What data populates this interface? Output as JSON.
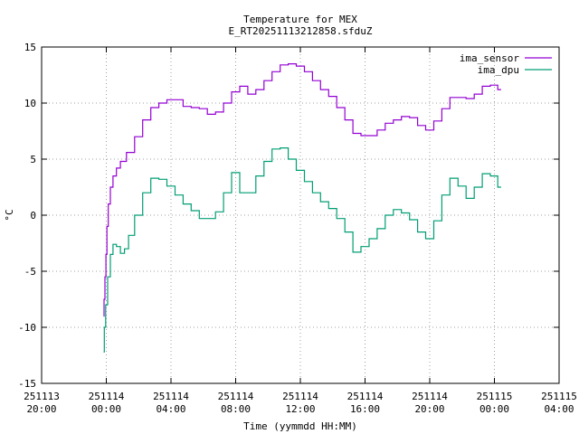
{
  "chart_data": {
    "type": "line",
    "title": "Temperature for MEX",
    "subtitle": "E_RT20251113212858.sfduZ",
    "xlabel": "Time (yymmdd HH:MM)",
    "ylabel": "°C",
    "x_ticks": [
      {
        "date": "251113",
        "time": "20:00"
      },
      {
        "date": "251114",
        "time": "00:00"
      },
      {
        "date": "251114",
        "time": "04:00"
      },
      {
        "date": "251114",
        "time": "08:00"
      },
      {
        "date": "251114",
        "time": "12:00"
      },
      {
        "date": "251114",
        "time": "16:00"
      },
      {
        "date": "251114",
        "time": "20:00"
      },
      {
        "date": "251115",
        "time": "00:00"
      },
      {
        "date": "251115",
        "time": "04:00"
      }
    ],
    "xlim": [
      "2025-11-13 20:00",
      "2025-11-15 04:00"
    ],
    "ylim": [
      -15,
      15
    ],
    "y_ticks": [
      -15,
      -10,
      -5,
      0,
      5,
      10,
      15
    ],
    "grid": true,
    "legend_position": "top-right",
    "colors": {
      "ima_sensor": "#9400d3",
      "ima_dpu": "#009e73"
    },
    "series": [
      {
        "name": "ima_sensor",
        "points": [
          [
            "2025-11-13 23:50",
            -9.0
          ],
          [
            "2025-11-13 23:53",
            -7.5
          ],
          [
            "2025-11-13 23:57",
            -5.5
          ],
          [
            "2025-11-14 00:00",
            -3.5
          ],
          [
            "2025-11-14 00:05",
            -1.0
          ],
          [
            "2025-11-14 00:10",
            1.0
          ],
          [
            "2025-11-14 00:20",
            2.5
          ],
          [
            "2025-11-14 00:30",
            3.5
          ],
          [
            "2025-11-14 00:45",
            4.2
          ],
          [
            "2025-11-14 01:00",
            4.8
          ],
          [
            "2025-11-14 01:30",
            5.6
          ],
          [
            "2025-11-14 02:00",
            7.0
          ],
          [
            "2025-11-14 02:30",
            8.5
          ],
          [
            "2025-11-14 03:00",
            9.6
          ],
          [
            "2025-11-14 03:30",
            10.0
          ],
          [
            "2025-11-14 04:00",
            10.3
          ],
          [
            "2025-11-14 04:30",
            10.3
          ],
          [
            "2025-11-14 05:00",
            9.7
          ],
          [
            "2025-11-14 05:30",
            9.6
          ],
          [
            "2025-11-14 06:00",
            9.5
          ],
          [
            "2025-11-14 06:30",
            9.0
          ],
          [
            "2025-11-14 07:00",
            9.2
          ],
          [
            "2025-11-14 07:30",
            10.0
          ],
          [
            "2025-11-14 08:00",
            11.0
          ],
          [
            "2025-11-14 08:30",
            11.5
          ],
          [
            "2025-11-14 09:00",
            10.8
          ],
          [
            "2025-11-14 09:30",
            11.2
          ],
          [
            "2025-11-14 10:00",
            12.0
          ],
          [
            "2025-11-14 10:30",
            12.8
          ],
          [
            "2025-11-14 11:00",
            13.4
          ],
          [
            "2025-11-14 11:30",
            13.5
          ],
          [
            "2025-11-14 12:00",
            13.3
          ],
          [
            "2025-11-14 12:30",
            12.8
          ],
          [
            "2025-11-14 13:00",
            12.0
          ],
          [
            "2025-11-14 13:30",
            11.2
          ],
          [
            "2025-11-14 14:00",
            10.6
          ],
          [
            "2025-11-14 14:30",
            9.6
          ],
          [
            "2025-11-14 15:00",
            8.5
          ],
          [
            "2025-11-14 15:30",
            7.3
          ],
          [
            "2025-11-14 16:00",
            7.1
          ],
          [
            "2025-11-14 16:30",
            7.1
          ],
          [
            "2025-11-14 17:00",
            7.6
          ],
          [
            "2025-11-14 17:30",
            8.2
          ],
          [
            "2025-11-14 18:00",
            8.5
          ],
          [
            "2025-11-14 18:30",
            8.8
          ],
          [
            "2025-11-14 19:00",
            8.7
          ],
          [
            "2025-11-14 19:30",
            8.0
          ],
          [
            "2025-11-14 20:00",
            7.6
          ],
          [
            "2025-11-14 20:30",
            8.4
          ],
          [
            "2025-11-14 21:00",
            9.5
          ],
          [
            "2025-11-14 21:30",
            10.5
          ],
          [
            "2025-11-14 22:00",
            10.5
          ],
          [
            "2025-11-14 22:30",
            10.4
          ],
          [
            "2025-11-14 23:00",
            10.8
          ],
          [
            "2025-11-14 23:30",
            11.5
          ],
          [
            "2025-11-15 00:00",
            11.6
          ],
          [
            "2025-11-15 00:25",
            11.2
          ]
        ]
      },
      {
        "name": "ima_dpu",
        "points": [
          [
            "2025-11-13 23:50",
            -12.2
          ],
          [
            "2025-11-13 23:55",
            -10.0
          ],
          [
            "2025-11-14 00:00",
            -8.0
          ],
          [
            "2025-11-14 00:10",
            -5.5
          ],
          [
            "2025-11-14 00:20",
            -3.5
          ],
          [
            "2025-11-14 00:30",
            -2.6
          ],
          [
            "2025-11-14 00:45",
            -2.8
          ],
          [
            "2025-11-14 01:00",
            -3.4
          ],
          [
            "2025-11-14 01:15",
            -3.0
          ],
          [
            "2025-11-14 01:30",
            -1.8
          ],
          [
            "2025-11-14 02:00",
            0.0
          ],
          [
            "2025-11-14 02:30",
            2.0
          ],
          [
            "2025-11-14 03:00",
            3.3
          ],
          [
            "2025-11-14 03:30",
            3.2
          ],
          [
            "2025-11-14 04:00",
            2.6
          ],
          [
            "2025-11-14 04:30",
            1.8
          ],
          [
            "2025-11-14 05:00",
            1.0
          ],
          [
            "2025-11-14 05:30",
            0.4
          ],
          [
            "2025-11-14 06:00",
            -0.3
          ],
          [
            "2025-11-14 06:30",
            -0.3
          ],
          [
            "2025-11-14 07:00",
            0.3
          ],
          [
            "2025-11-14 07:30",
            2.0
          ],
          [
            "2025-11-14 08:00",
            3.8
          ],
          [
            "2025-11-14 08:30",
            2.0
          ],
          [
            "2025-11-14 09:00",
            2.0
          ],
          [
            "2025-11-14 09:30",
            3.5
          ],
          [
            "2025-11-14 10:00",
            4.8
          ],
          [
            "2025-11-14 10:30",
            5.9
          ],
          [
            "2025-11-14 11:00",
            6.0
          ],
          [
            "2025-11-14 11:30",
            5.0
          ],
          [
            "2025-11-14 12:00",
            4.0
          ],
          [
            "2025-11-14 12:30",
            3.0
          ],
          [
            "2025-11-14 13:00",
            2.0
          ],
          [
            "2025-11-14 13:30",
            1.2
          ],
          [
            "2025-11-14 14:00",
            0.6
          ],
          [
            "2025-11-14 14:30",
            -0.3
          ],
          [
            "2025-11-14 15:00",
            -1.5
          ],
          [
            "2025-11-14 15:30",
            -3.3
          ],
          [
            "2025-11-14 16:00",
            -2.8
          ],
          [
            "2025-11-14 16:30",
            -2.1
          ],
          [
            "2025-11-14 17:00",
            -1.2
          ],
          [
            "2025-11-14 17:30",
            0.0
          ],
          [
            "2025-11-14 18:00",
            0.5
          ],
          [
            "2025-11-14 18:30",
            0.2
          ],
          [
            "2025-11-14 19:00",
            -0.4
          ],
          [
            "2025-11-14 19:30",
            -1.5
          ],
          [
            "2025-11-14 20:00",
            -2.1
          ],
          [
            "2025-11-14 20:30",
            -0.5
          ],
          [
            "2025-11-14 21:00",
            1.8
          ],
          [
            "2025-11-14 21:30",
            3.3
          ],
          [
            "2025-11-14 22:00",
            2.6
          ],
          [
            "2025-11-14 22:30",
            1.5
          ],
          [
            "2025-11-14 23:00",
            2.5
          ],
          [
            "2025-11-14 23:30",
            3.7
          ],
          [
            "2025-11-15 00:00",
            3.5
          ],
          [
            "2025-11-15 00:25",
            2.5
          ]
        ]
      }
    ]
  }
}
